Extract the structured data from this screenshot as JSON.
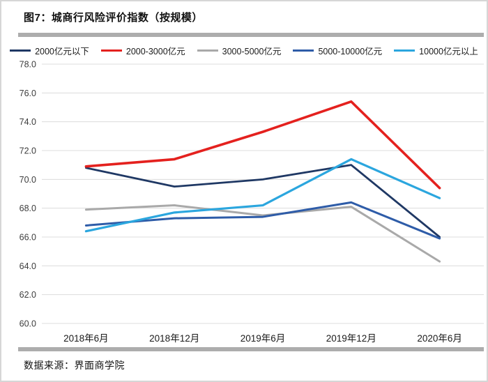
{
  "page": {
    "title": "图7：城商行风险评价指数（按规模）",
    "source": "数据来源：界面商学院"
  },
  "chart_data": {
    "type": "line",
    "title": "图7：城商行风险评价指数（按规模）",
    "categories": [
      "2018年6月",
      "2018年12月",
      "2019年6月",
      "2019年12月",
      "2020年6月"
    ],
    "series": [
      {
        "name": "2000亿元以下",
        "color": "#1f3864",
        "values": [
          70.8,
          69.5,
          70.0,
          71.0,
          66.0
        ]
      },
      {
        "name": "2000-3000亿元",
        "color": "#e4211e",
        "values": [
          70.9,
          71.4,
          73.3,
          75.4,
          69.4
        ]
      },
      {
        "name": "3000-5000亿元",
        "color": "#a9a9a9",
        "values": [
          67.9,
          68.2,
          67.5,
          68.1,
          64.3
        ]
      },
      {
        "name": "5000-10000亿元",
        "color": "#2e5ca8",
        "values": [
          66.8,
          67.3,
          67.4,
          68.4,
          65.9
        ]
      },
      {
        "name": "10000亿元以上",
        "color": "#2ba6de",
        "values": [
          66.4,
          67.7,
          68.2,
          71.4,
          68.7
        ]
      }
    ],
    "ylim": [
      60.0,
      78.0
    ],
    "ytick_step": 2.0,
    "ytick_labels": [
      "78.0",
      "76.0",
      "74.0",
      "72.0",
      "70.0",
      "68.0",
      "66.0",
      "64.0",
      "62.0",
      "60.0"
    ],
    "xlabel": "",
    "ylabel": "",
    "grid": "horizontal",
    "legend_position": "top",
    "source_note": "数据来源：界面商学院"
  }
}
